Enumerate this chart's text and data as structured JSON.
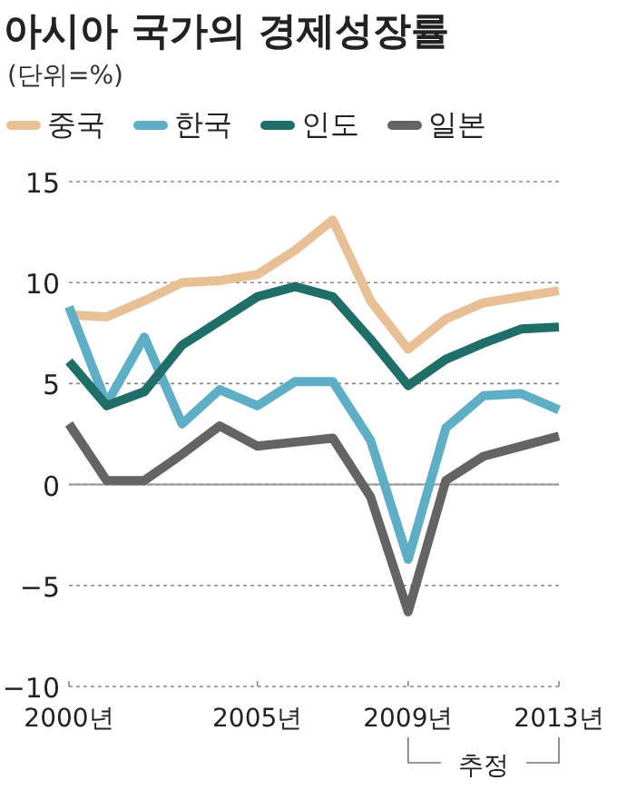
{
  "chart_data": {
    "type": "line",
    "title": "아시아 국가의 경제성장률",
    "subtitle": "(단위=%)",
    "x": [
      2000,
      2001,
      2002,
      2003,
      2004,
      2005,
      2006,
      2007,
      2008,
      2009,
      2010,
      2011,
      2012,
      2013
    ],
    "series": [
      {
        "name": "중국",
        "color": "#e8c096",
        "values": [
          8.4,
          8.3,
          9.1,
          10.0,
          10.1,
          10.4,
          11.6,
          13.1,
          9.1,
          6.7,
          8.2,
          9.0,
          9.3,
          9.6
        ]
      },
      {
        "name": "한국",
        "color": "#5eaec6",
        "values": [
          8.8,
          4.0,
          7.3,
          3.0,
          4.7,
          3.9,
          5.1,
          5.1,
          2.2,
          -3.7,
          2.8,
          4.4,
          4.5,
          3.7
        ]
      },
      {
        "name": "인도",
        "color": "#1f6e68",
        "values": [
          6.1,
          3.9,
          4.6,
          6.9,
          8.1,
          9.3,
          9.8,
          9.3,
          7.2,
          4.9,
          6.2,
          7.0,
          7.7,
          7.8
        ]
      },
      {
        "name": "일본",
        "color": "#646464",
        "values": [
          3.0,
          0.2,
          0.2,
          1.5,
          2.9,
          1.9,
          2.1,
          2.3,
          -0.6,
          -6.3,
          0.2,
          1.4,
          1.9,
          2.4
        ]
      }
    ],
    "xlim": [
      2000,
      2013
    ],
    "ylim": [
      -10,
      15
    ],
    "xticks": [
      {
        "value": 2000,
        "label": "2000년"
      },
      {
        "value": 2005,
        "label": "2005년"
      },
      {
        "value": 2009,
        "label": "2009년"
      },
      {
        "value": 2013,
        "label": "2013년"
      }
    ],
    "yticks": [
      -10,
      -5,
      0,
      5,
      10,
      15
    ],
    "grid": "y",
    "legend": "top left",
    "marker": "none",
    "line_style": "solid",
    "ref_lines": [
      {
        "axis": "y",
        "value": 0,
        "color": "#999999",
        "line_style": "solid"
      }
    ],
    "annotations": [
      "추정"
    ]
  }
}
